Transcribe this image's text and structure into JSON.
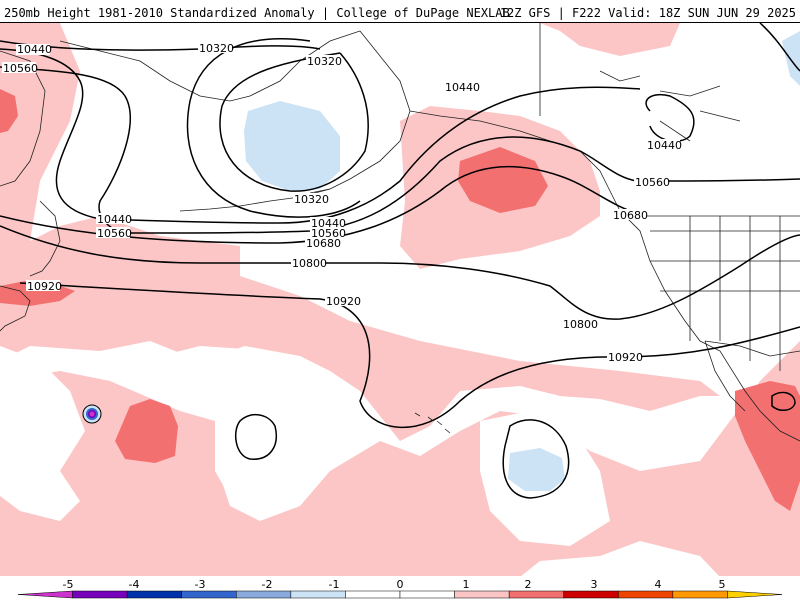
{
  "header": {
    "title": "250mb Height 1981-2010 Standardized Anomaly | College of DuPage NEXLAB",
    "run_info": "12Z GFS | F222 Valid: 18Z SUN JUN 29 2025"
  },
  "contour_labels": [
    {
      "id": "a",
      "text": "10440"
    },
    {
      "id": "b",
      "text": "10560"
    },
    {
      "id": "c",
      "text": "10320"
    },
    {
      "id": "d",
      "text": "10320"
    },
    {
      "id": "e",
      "text": "10440"
    },
    {
      "id": "f",
      "text": "10440"
    },
    {
      "id": "g",
      "text": "10440"
    },
    {
      "id": "h",
      "text": "10560"
    },
    {
      "id": "i",
      "text": "10680"
    },
    {
      "id": "j",
      "text": "10320"
    },
    {
      "id": "k",
      "text": "10440"
    },
    {
      "id": "l",
      "text": "10560"
    },
    {
      "id": "m",
      "text": "10680"
    },
    {
      "id": "n",
      "text": "10800"
    },
    {
      "id": "o",
      "text": "10920"
    },
    {
      "id": "p",
      "text": "10920"
    },
    {
      "id": "q",
      "text": "10560"
    },
    {
      "id": "r",
      "text": "10800"
    },
    {
      "id": "s",
      "text": "10920"
    }
  ],
  "colorbar": {
    "ticks": [
      "-5",
      "-4",
      "-3",
      "-2",
      "-1",
      "0",
      "1",
      "2",
      "3",
      "4",
      "5"
    ],
    "colors": [
      "#cc33cc",
      "#7700bb",
      "#0033aa",
      "#3366cc",
      "#88aadd",
      "#cce2f5",
      "#ffffff",
      "#ffffff",
      "#fcc5c5",
      "#f37070",
      "#cc0000",
      "#ee4400",
      "#ff9900",
      "#ffd000"
    ]
  }
}
